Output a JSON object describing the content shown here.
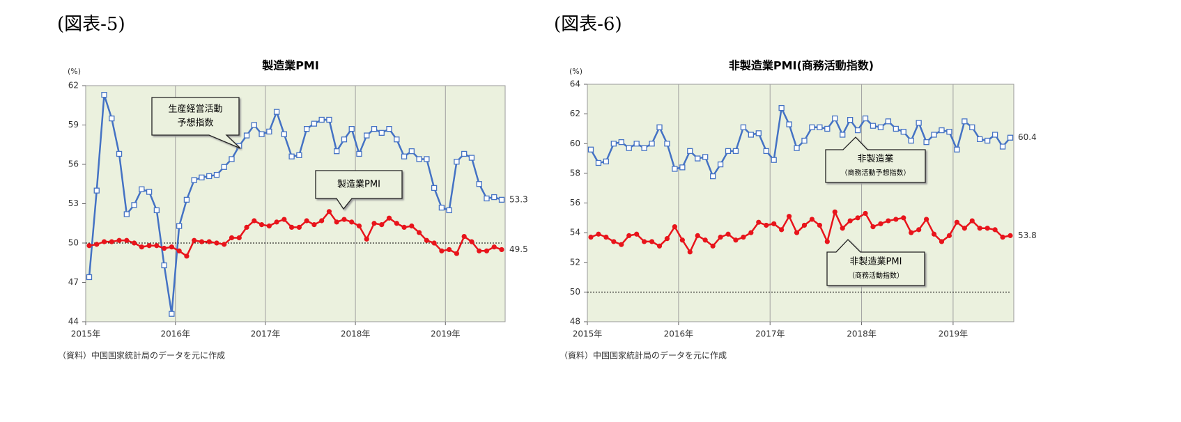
{
  "chart_data": [
    {
      "type": "line",
      "figure_label": "(図表-5)",
      "title": "製造業PMI",
      "y_unit": "(%)",
      "source": "（資料）中国国家統計局のデータを元に作成",
      "categories": [
        "2015年",
        null,
        null,
        null,
        null,
        null,
        null,
        null,
        null,
        null,
        null,
        null,
        "2016年",
        null,
        null,
        null,
        null,
        null,
        null,
        null,
        null,
        null,
        null,
        null,
        "2017年",
        null,
        null,
        null,
        null,
        null,
        null,
        null,
        null,
        null,
        null,
        null,
        "2018年",
        null,
        null,
        null,
        null,
        null,
        null,
        null,
        null,
        null,
        null,
        null,
        "2019年",
        null,
        null,
        null,
        null,
        null,
        null,
        null
      ],
      "ylim": [
        44,
        62
      ],
      "yticks": [
        44,
        47,
        50,
        53,
        56,
        59,
        62
      ],
      "reference_line": 50,
      "grid": true,
      "series": [
        {
          "color": "#4472c4",
          "marker": "square",
          "values": [
            47.4,
            54.0,
            61.3,
            59.5,
            56.8,
            52.2,
            52.9,
            54.1,
            53.9,
            52.5,
            48.3,
            44.6,
            51.3,
            53.3,
            54.8,
            55.0,
            55.1,
            55.2,
            55.8,
            56.4,
            57.4,
            58.2,
            59.0,
            58.3,
            58.5,
            60.0,
            58.3,
            56.6,
            56.7,
            58.7,
            59.1,
            59.4,
            59.4,
            57.0,
            57.9,
            58.7,
            56.8,
            58.2,
            58.7,
            58.4,
            58.7,
            57.9,
            56.6,
            57.0,
            56.4,
            56.4,
            54.2,
            52.7,
            52.5,
            56.2,
            56.8,
            56.5,
            54.5,
            53.4,
            53.5,
            53.3
          ]
        },
        {
          "color": "#e8141b",
          "marker": "circle",
          "values": [
            49.8,
            49.9,
            50.1,
            50.1,
            50.2,
            50.2,
            50.0,
            49.7,
            49.8,
            49.8,
            49.6,
            49.7,
            49.4,
            49.0,
            50.2,
            50.1,
            50.1,
            50.0,
            49.9,
            50.4,
            50.4,
            51.2,
            51.7,
            51.4,
            51.3,
            51.6,
            51.8,
            51.2,
            51.2,
            51.7,
            51.4,
            51.7,
            52.4,
            51.6,
            51.8,
            51.6,
            51.3,
            50.3,
            51.5,
            51.4,
            51.9,
            51.5,
            51.2,
            51.3,
            50.8,
            50.2,
            50.0,
            49.4,
            49.5,
            49.2,
            50.5,
            50.1,
            49.4,
            49.4,
            49.7,
            49.5
          ]
        }
      ],
      "annotations": [
        {
          "text": [
            "生産経営活動",
            "予想指数"
          ]
        },
        {
          "text": [
            "製造業PMI"
          ]
        }
      ]
    },
    {
      "type": "line",
      "figure_label": "(図表-6)",
      "title": "非製造業PMI(商務活動指数)",
      "y_unit": "(%)",
      "source": "（資料）中国国家統計局のデータを元に作成",
      "categories": [
        "2015年",
        null,
        null,
        null,
        null,
        null,
        null,
        null,
        null,
        null,
        null,
        null,
        "2016年",
        null,
        null,
        null,
        null,
        null,
        null,
        null,
        null,
        null,
        null,
        null,
        "2017年",
        null,
        null,
        null,
        null,
        null,
        null,
        null,
        null,
        null,
        null,
        null,
        "2018年",
        null,
        null,
        null,
        null,
        null,
        null,
        null,
        null,
        null,
        null,
        null,
        "2019年",
        null,
        null,
        null,
        null,
        null,
        null,
        null
      ],
      "ylim": [
        48,
        64
      ],
      "yticks": [
        48,
        50,
        52,
        54,
        56,
        58,
        60,
        62,
        64
      ],
      "reference_line": 50,
      "grid": true,
      "series": [
        {
          "color": "#4472c4",
          "marker": "square",
          "values": [
            59.6,
            58.7,
            58.8,
            60.0,
            60.1,
            59.7,
            60.0,
            59.7,
            60.0,
            61.1,
            60.0,
            58.3,
            58.4,
            59.5,
            59.0,
            59.1,
            57.8,
            58.6,
            59.5,
            59.5,
            61.1,
            60.6,
            60.7,
            59.5,
            58.9,
            62.4,
            61.3,
            59.7,
            60.2,
            61.1,
            61.1,
            61.0,
            61.7,
            60.6,
            61.6,
            60.9,
            61.7,
            61.2,
            61.1,
            61.5,
            61.0,
            60.8,
            60.2,
            61.4,
            60.1,
            60.6,
            60.9,
            60.8,
            59.6,
            61.5,
            61.1,
            60.3,
            60.2,
            60.6,
            59.8,
            60.4
          ]
        },
        {
          "color": "#e8141b",
          "marker": "circle",
          "values": [
            53.7,
            53.9,
            53.7,
            53.4,
            53.2,
            53.8,
            53.9,
            53.4,
            53.4,
            53.1,
            53.6,
            54.4,
            53.5,
            52.7,
            53.8,
            53.5,
            53.1,
            53.7,
            53.9,
            53.5,
            53.7,
            54.0,
            54.7,
            54.5,
            54.6,
            54.2,
            55.1,
            54.0,
            54.5,
            54.9,
            54.5,
            53.4,
            55.4,
            54.3,
            54.8,
            55.0,
            55.3,
            54.4,
            54.6,
            54.8,
            54.9,
            55.0,
            54.0,
            54.2,
            54.9,
            53.9,
            53.4,
            53.8,
            54.7,
            54.3,
            54.8,
            54.3,
            54.3,
            54.2,
            53.7,
            53.8
          ]
        }
      ],
      "annotations": [
        {
          "text": [
            "非製造業",
            "（商務活動予想指数）"
          ]
        },
        {
          "text": [
            "非製造業PMI",
            "（商務活動指数）"
          ]
        }
      ]
    }
  ]
}
